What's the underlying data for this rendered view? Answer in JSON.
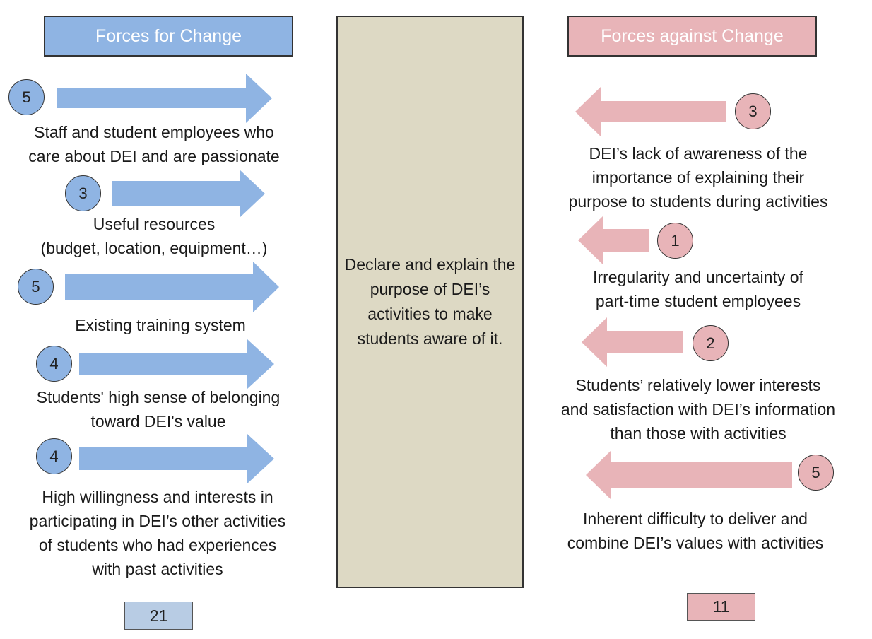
{
  "headers": {
    "for": "Forces for Change",
    "against": "Forces against Change"
  },
  "center": {
    "text": "Declare and explain the purpose of DEI’s activities to make students aware of it."
  },
  "forces_for": [
    {
      "score": "5",
      "lines": [
        "Staff and student employees who",
        "care about DEI and are passionate"
      ]
    },
    {
      "score": "3",
      "lines": [
        "Useful resources",
        "(budget, location, equipment…)"
      ]
    },
    {
      "score": "5",
      "lines": [
        "Existing training system"
      ]
    },
    {
      "score": "4",
      "lines": [
        "Students' high sense of belonging",
        "toward DEI's value"
      ]
    },
    {
      "score": "4",
      "lines": [
        "High willingness and interests in",
        "participating in DEI’s other activities",
        "of students who had experiences",
        "with past activities"
      ]
    }
  ],
  "forces_against": [
    {
      "score": "3",
      "lines": [
        "DEI’s lack of awareness of the",
        "importance of explaining their",
        "purpose to students during activities"
      ]
    },
    {
      "score": "1",
      "lines": [
        "Irregularity and uncertainty of",
        "part-time student employees"
      ]
    },
    {
      "score": "2",
      "lines": [
        "Students’ relatively lower interests",
        "and satisfaction with DEI’s information",
        "than those with activities"
      ]
    },
    {
      "score": "5",
      "lines": [
        "Inherent difficulty to deliver and",
        "combine DEI’s values with activities"
      ]
    }
  ],
  "totals": {
    "for": "21",
    "against": "11"
  },
  "colors": {
    "for": "#8fb4e3",
    "against": "#e8b4b8",
    "center": "#ddd9c4"
  }
}
